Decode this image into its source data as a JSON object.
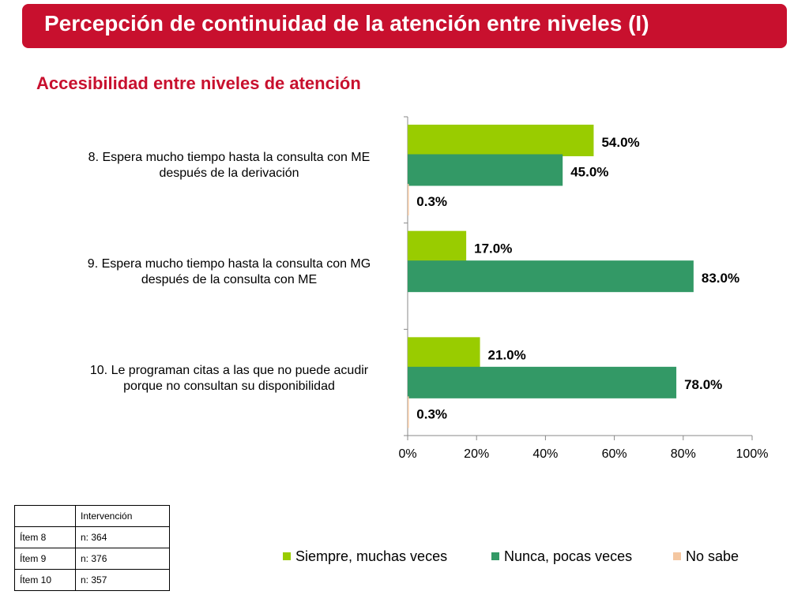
{
  "header": {
    "title": "Percepción de continuidad de la atención entre niveles  (I)",
    "subtitle": "Accesibilidad entre niveles de atención"
  },
  "colors": {
    "title_bar": "#c8102e",
    "series1": "#99cc00",
    "series2": "#339966",
    "series3": "#f4c7a1"
  },
  "chart_data": {
    "type": "bar",
    "orientation": "horizontal",
    "categories": [
      [
        "8. Espera mucho tiempo hasta la consulta con ME",
        "después de la derivación"
      ],
      [
        "9. Espera mucho tiempo hasta la consulta con MG",
        "después de la consulta con ME"
      ],
      [
        "10. Le programan citas a las que no puede acudir",
        "porque no consultan su disponibilidad"
      ]
    ],
    "series": [
      {
        "name": "Siempre, muchas veces",
        "values": [
          54.0,
          17.0,
          21.0
        ],
        "labels": [
          "54.0%",
          "17.0%",
          "21.0%"
        ]
      },
      {
        "name": "Nunca, pocas veces",
        "values": [
          45.0,
          83.0,
          78.0
        ],
        "labels": [
          "45.0%",
          "83.0%",
          "78.0%"
        ]
      },
      {
        "name": "No sabe",
        "values": [
          0.3,
          null,
          0.3
        ],
        "labels": [
          "0.3%",
          "",
          "0.3%"
        ]
      }
    ],
    "xlim": [
      0,
      100
    ],
    "xticks": [
      "0%",
      "20%",
      "40%",
      "60%",
      "80%",
      "100%"
    ],
    "grid": false,
    "legend_position": "bottom"
  },
  "table": {
    "header": [
      "",
      "Intervención"
    ],
    "rows": [
      [
        "Ítem 8",
        "n: 364"
      ],
      [
        "Ítem 9",
        "n: 376"
      ],
      [
        "Ítem 10",
        "n: 357"
      ]
    ]
  }
}
